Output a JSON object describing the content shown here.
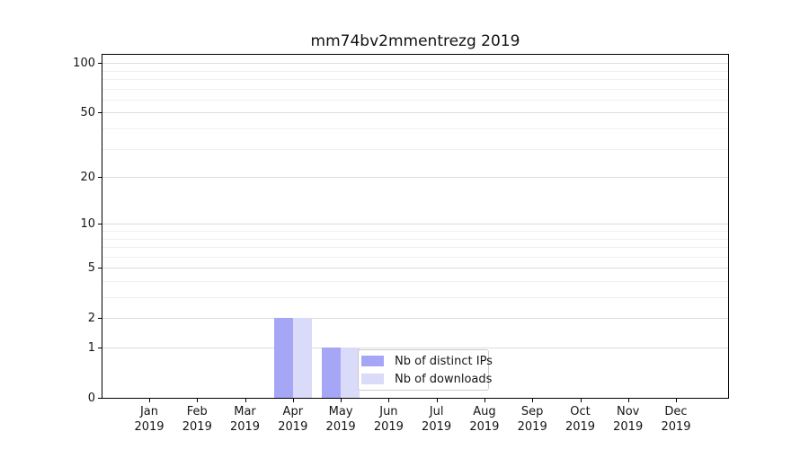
{
  "title": "mm74bv2mmentrezg 2019",
  "chart_data": {
    "type": "bar",
    "title": "mm74bv2mmentrezg 2019",
    "x_axis": {
      "months": [
        "Jan",
        "Feb",
        "Mar",
        "Apr",
        "May",
        "Jun",
        "Jul",
        "Aug",
        "Sep",
        "Oct",
        "Nov",
        "Dec"
      ],
      "year": "2019"
    },
    "categories": [
      "Jan 2019",
      "Feb 2019",
      "Mar 2019",
      "Apr 2019",
      "May 2019",
      "Jun 2019",
      "Jul 2019",
      "Aug 2019",
      "Sep 2019",
      "Oct 2019",
      "Nov 2019",
      "Dec 2019"
    ],
    "series": [
      {
        "name": "Nb of distinct IPs",
        "color": "#a6a6f7",
        "values": [
          0,
          0,
          0,
          2,
          1,
          0,
          0,
          0,
          0,
          0,
          0,
          0
        ]
      },
      {
        "name": "Nb of downloads",
        "color": "#dadaf9",
        "values": [
          0,
          0,
          0,
          2,
          1,
          0,
          0,
          0,
          0,
          0,
          0,
          0
        ]
      }
    ],
    "y_axis": {
      "scale": "log1p",
      "ticks": [
        0,
        1,
        2,
        5,
        10,
        20,
        50,
        100
      ],
      "minor_ticks": [
        3,
        4,
        6,
        7,
        8,
        9,
        30,
        40,
        60,
        70,
        80,
        90
      ],
      "max": 112
    },
    "grid": true,
    "legend_position": "inside-lower-center",
    "colors": {
      "grid_major": "#dcdcdc",
      "grid_minor": "#f0f0f0",
      "spine": "#000000",
      "text": "#151515",
      "legend_border": "#cccccc"
    }
  }
}
